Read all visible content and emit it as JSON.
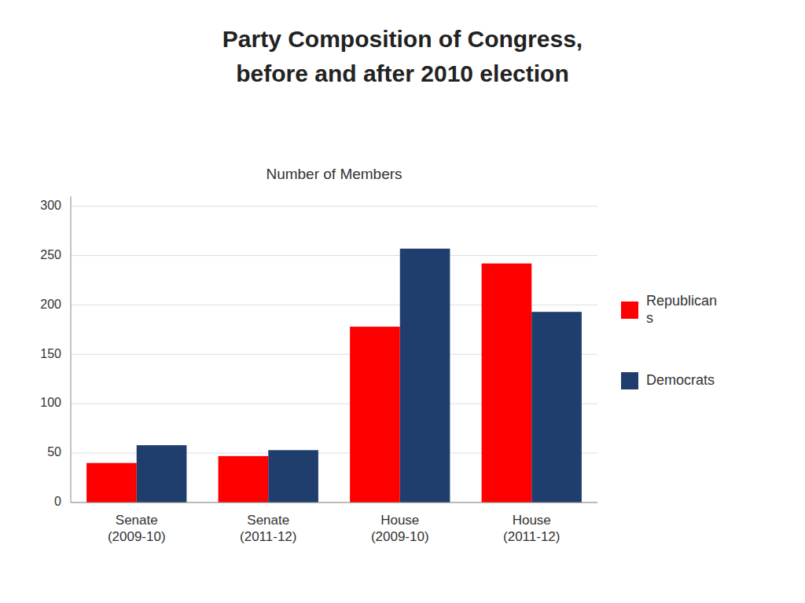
{
  "chart_data": {
    "type": "bar",
    "title": "Party Composition of Congress,\nbefore and after 2010 election",
    "subtitle": "Number of Members",
    "categories": [
      "Senate\n(2009-10)",
      "Senate\n(2011-12)",
      "House\n(2009-10)",
      "House\n(2011-12)"
    ],
    "series": [
      {
        "name": "Republican\ns",
        "color": "#FF0000",
        "values": [
          40,
          47,
          178,
          242
        ]
      },
      {
        "name": "Democrats",
        "color": "#1F3E6E",
        "values": [
          58,
          53,
          257,
          193
        ]
      }
    ],
    "ylim": [
      0,
      310
    ],
    "yticks": [
      0,
      50,
      100,
      150,
      200,
      250,
      300
    ],
    "grid": true,
    "legend": "right"
  }
}
